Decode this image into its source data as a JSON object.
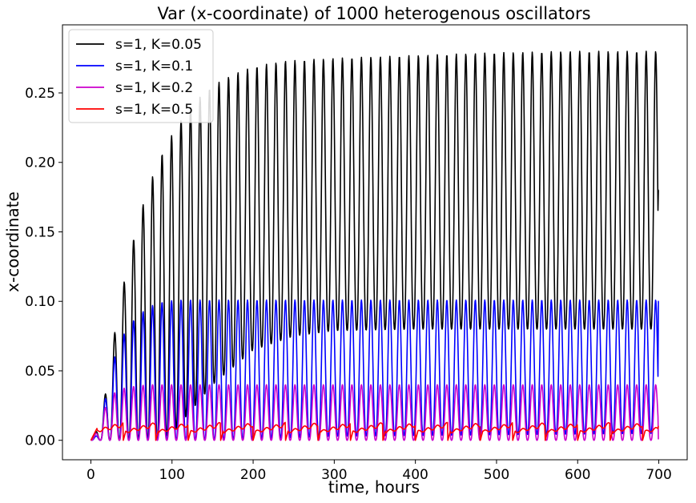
{
  "chart_data": {
    "type": "line",
    "title": "Var (x-coordinate) of 1000 heterogenous oscillators",
    "xlabel": "time, hours",
    "ylabel": "x-coordinate",
    "xlim": [
      -35,
      735
    ],
    "ylim": [
      -0.014,
      0.299
    ],
    "xticks": [
      0,
      100,
      200,
      300,
      400,
      500,
      600,
      700
    ],
    "xtick_labels": [
      "0",
      "100",
      "200",
      "300",
      "400",
      "500",
      "600",
      "700"
    ],
    "yticks": [
      0.0,
      0.05,
      0.1,
      0.15,
      0.2,
      0.25
    ],
    "ytick_labels": [
      "0.00",
      "0.05",
      "0.10",
      "0.15",
      "0.20",
      "0.25"
    ],
    "grid": false,
    "legend_position": "top-left",
    "period_hours": 11.7,
    "t_range": [
      0,
      700
    ],
    "series": [
      {
        "name": "s=1, K=0.05",
        "color": "#000000",
        "peak_envelope": [
          [
            0,
            0.0
          ],
          [
            10,
            0.01
          ],
          [
            20,
            0.04
          ],
          [
            30,
            0.08
          ],
          [
            42,
            0.117
          ],
          [
            54,
            0.148
          ],
          [
            66,
            0.173
          ],
          [
            78,
            0.193
          ],
          [
            90,
            0.209
          ],
          [
            102,
            0.222
          ],
          [
            114,
            0.233
          ],
          [
            126,
            0.242
          ],
          [
            138,
            0.249
          ],
          [
            150,
            0.255
          ],
          [
            162,
            0.259
          ],
          [
            174,
            0.263
          ],
          [
            186,
            0.266
          ],
          [
            198,
            0.268
          ],
          [
            210,
            0.27
          ],
          [
            240,
            0.273
          ],
          [
            300,
            0.275
          ],
          [
            400,
            0.277
          ],
          [
            500,
            0.279
          ],
          [
            600,
            0.28
          ],
          [
            700,
            0.28
          ]
        ],
        "trough_envelope": [
          [
            0,
            0.0
          ],
          [
            30,
            0.0
          ],
          [
            60,
            0.0
          ],
          [
            80,
            0.0
          ],
          [
            100,
            0.005
          ],
          [
            150,
            0.04
          ],
          [
            200,
            0.065
          ],
          [
            250,
            0.075
          ],
          [
            300,
            0.079
          ],
          [
            400,
            0.08
          ],
          [
            700,
            0.08
          ]
        ],
        "end_value": 0.18
      },
      {
        "name": "s=1, K=0.1",
        "color": "#0000ff",
        "peak_envelope": [
          [
            0,
            0.0
          ],
          [
            10,
            0.005
          ],
          [
            20,
            0.037
          ],
          [
            31,
            0.064
          ],
          [
            43,
            0.079
          ],
          [
            55,
            0.088
          ],
          [
            67,
            0.094
          ],
          [
            79,
            0.098
          ],
          [
            91,
            0.1
          ],
          [
            110,
            0.101
          ],
          [
            700,
            0.101
          ]
        ],
        "trough_envelope": [
          [
            0,
            0.0
          ],
          [
            150,
            0.0
          ],
          [
            300,
            0.003
          ],
          [
            500,
            0.004
          ],
          [
            700,
            0.005
          ]
        ],
        "end_value": 0.1
      },
      {
        "name": "s=1, K=0.2",
        "color": "#cc00cc",
        "peak_envelope": [
          [
            0,
            0.0
          ],
          [
            10,
            0.008
          ],
          [
            20,
            0.028
          ],
          [
            32,
            0.036
          ],
          [
            44,
            0.038
          ],
          [
            56,
            0.039
          ],
          [
            70,
            0.04
          ],
          [
            700,
            0.04
          ]
        ],
        "trough_envelope": [
          [
            0,
            0.0
          ],
          [
            700,
            0.0
          ]
        ],
        "end_value": 0.001
      },
      {
        "name": "s=1, K=0.5",
        "color": "#ff0000",
        "peak_value": 0.013,
        "base_value": 0.007,
        "dip_value": 0.0,
        "ramp_period_hours": 40,
        "end_value": 0.01
      }
    ]
  }
}
